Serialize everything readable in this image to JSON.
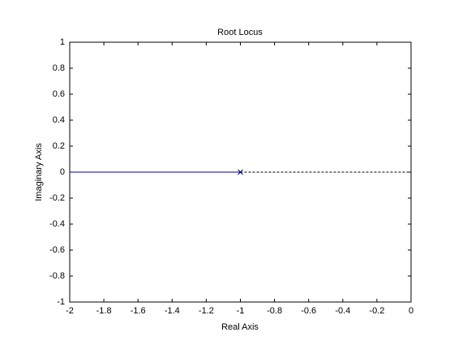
{
  "chart_data": {
    "type": "line",
    "title": "Root Locus",
    "xlabel": "Real Axis",
    "ylabel": "Imaginary Axis",
    "xlim": [
      -2,
      0
    ],
    "ylim": [
      -1,
      1
    ],
    "xticks": [
      -2,
      -1.8,
      -1.6,
      -1.4,
      -1.2,
      -1,
      -0.8,
      -0.6,
      -0.4,
      -0.2,
      0
    ],
    "yticks": [
      -1,
      -0.8,
      -0.6,
      -0.4,
      -0.2,
      0,
      0.2,
      0.4,
      0.6,
      0.8,
      1
    ],
    "box": true,
    "series": [
      {
        "color": "#00007f",
        "x": [
          -2,
          -1
        ],
        "values": [
          0,
          0
        ],
        "line": "solid"
      },
      {
        "color": "#000000",
        "x": [
          -1,
          0
        ],
        "values": [
          0,
          0
        ],
        "line": "dashed"
      },
      {
        "color": "#00007f",
        "x": [
          -1
        ],
        "values": [
          0
        ],
        "line": "none",
        "marker": "x"
      }
    ]
  }
}
